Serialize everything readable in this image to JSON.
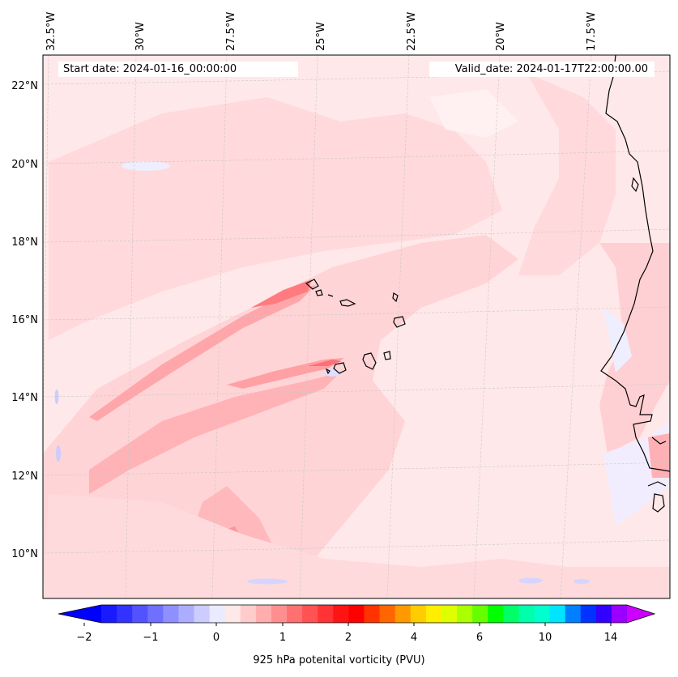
{
  "header": {
    "start_date_label": "Start date: 2024-01-16_00:00:00",
    "valid_date_label": "Valid_date: 2024-01-17T22:00:00.00"
  },
  "map": {
    "background_color": "#ffe8e9",
    "coastline_color": "#000000",
    "longitude_labels": [
      "32.5°W",
      "30°W",
      "27.5°W",
      "25°W",
      "22.5°W",
      "20°W",
      "17.5°W"
    ],
    "latitude_labels": [
      "22°N",
      "20°N",
      "18°N",
      "16°N",
      "14°N",
      "12°N",
      "10°N"
    ],
    "features": [
      "cape-verde-islands",
      "west-africa-coastline"
    ]
  },
  "colorbar": {
    "title": "925 hPa potenital vorticity (PVU)",
    "tick_labels": [
      "−2",
      "−1",
      "0",
      "1",
      "2",
      "4",
      "6",
      "10",
      "14"
    ],
    "under_color": "#0000ff",
    "over_color": "#cc00ff",
    "colors": [
      "#1a1aff",
      "#3333ff",
      "#5252ff",
      "#7070ff",
      "#8f8fff",
      "#adadff",
      "#ccccff",
      "#ebebff",
      "#ffe8e8",
      "#ffcccc",
      "#ffadad",
      "#ff8f8f",
      "#ff7070",
      "#ff5252",
      "#ff3333",
      "#ff1414",
      "#ff0000",
      "#ff3300",
      "#ff6600",
      "#ff9900",
      "#ffcc00",
      "#ffee00",
      "#ddff00",
      "#aaff00",
      "#66ff00",
      "#00ff00",
      "#00ff66",
      "#00ffaa",
      "#00ffcc",
      "#00e5ff",
      "#0080ff",
      "#0033ff",
      "#3300ff",
      "#9900ff"
    ]
  }
}
